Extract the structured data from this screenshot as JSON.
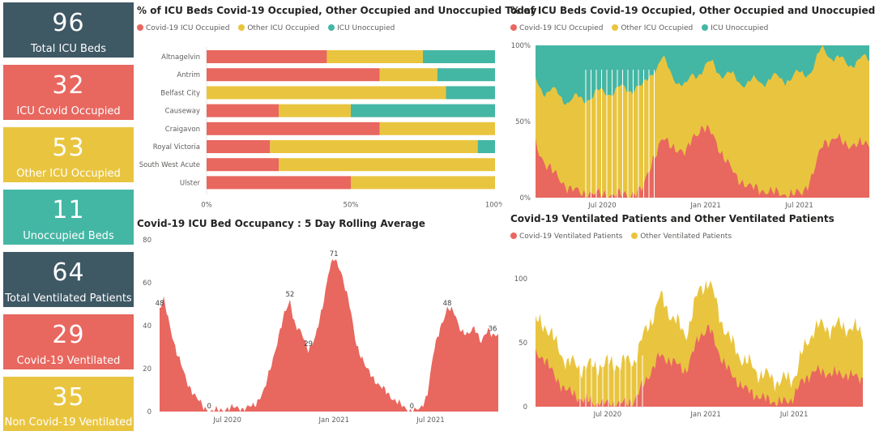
{
  "colors": {
    "covid": "#E8675F",
    "other": "#E9C53F",
    "unocc": "#44B6A4",
    "slate": "#3E5864"
  },
  "cards": [
    {
      "value": "96",
      "label": "Total ICU Beds",
      "color": "#3E5864"
    },
    {
      "value": "32",
      "label": "ICU Covid Occupied",
      "color": "#E8675F"
    },
    {
      "value": "53",
      "label": "Other ICU Occupied",
      "color": "#E9C53F"
    },
    {
      "value": "11",
      "label": "Unoccupied Beds",
      "color": "#44B6A4"
    },
    {
      "value": "64",
      "label": "Total Ventilated Patients",
      "color": "#3E5864"
    },
    {
      "value": "29",
      "label": "Covid-19 Ventilated",
      "color": "#E8675F"
    },
    {
      "value": "35",
      "label": "Non Covid-19 Ventilated",
      "color": "#E9C53F"
    }
  ],
  "today": {
    "title": "% of ICU Beds Covid-19 Occupied, Other Occupied and Unoccupied Today",
    "legend": [
      "Covid-19 ICU Occupied",
      "Other ICU Occupied",
      "ICU Unoccupied"
    ]
  },
  "history": {
    "title": "% of ICU Beds Covid-19 Occupied, Other Occupied and Unoccupied",
    "legend": [
      "Covid-19 ICU Occupied",
      "Other ICU Occupied",
      "ICU Unoccupied"
    ]
  },
  "rolling": {
    "title": "Covid-19 ICU Bed Occupancy : 5 Day Rolling Average"
  },
  "vent": {
    "title": "Covid-19 Ventilated Patients and Other Ventilated Patients",
    "legend": [
      "Covid-19 Ventilated Patients",
      "Other Ventilated Patients"
    ]
  },
  "chart_data": [
    {
      "type": "bar",
      "stacked": "100%",
      "orientation": "horizontal",
      "categories": [
        "Altnagelvin",
        "Antrim",
        "Belfast City",
        "Causeway",
        "Craigavon",
        "Royal Victoria",
        "South West Acute",
        "Ulster"
      ],
      "series": [
        {
          "name": "Covid-19 ICU Occupied",
          "values": [
            41.7,
            60,
            0,
            25,
            60,
            22,
            25,
            50
          ]
        },
        {
          "name": "Other ICU Occupied",
          "values": [
            33.3,
            20,
            83,
            25,
            40,
            72,
            75,
            50
          ]
        },
        {
          "name": "ICU Unoccupied",
          "values": [
            25,
            20,
            17,
            50,
            0,
            6,
            0,
            0
          ]
        }
      ],
      "x_ticks": [
        "0%",
        "50%",
        "100%"
      ],
      "xlim": [
        0,
        100
      ]
    },
    {
      "type": "area",
      "stacked": "100%",
      "x_ticks": [
        "Jul 2020",
        "Jan 2021",
        "Jul 2021"
      ],
      "y_ticks": [
        "0%",
        "50%",
        "100%"
      ],
      "ylim": [
        0,
        100
      ],
      "series": [
        {
          "name": "Covid-19 ICU Occupied",
          "keypoints": [
            [
              0,
              35
            ],
            [
              0.03,
              22
            ],
            [
              0.06,
              15
            ],
            [
              0.1,
              6
            ],
            [
              0.14,
              3
            ],
            [
              0.2,
              2
            ],
            [
              0.28,
              2
            ],
            [
              0.32,
              5
            ],
            [
              0.35,
              25
            ],
            [
              0.38,
              38
            ],
            [
              0.42,
              33
            ],
            [
              0.45,
              28
            ],
            [
              0.47,
              40
            ],
            [
              0.5,
              46
            ],
            [
              0.53,
              42
            ],
            [
              0.56,
              28
            ],
            [
              0.6,
              14
            ],
            [
              0.64,
              7
            ],
            [
              0.68,
              5
            ],
            [
              0.72,
              3
            ],
            [
              0.76,
              2
            ],
            [
              0.8,
              3
            ],
            [
              0.83,
              15
            ],
            [
              0.86,
              35
            ],
            [
              0.9,
              40
            ],
            [
              0.93,
              34
            ],
            [
              0.96,
              36
            ],
            [
              1,
              34
            ]
          ]
        },
        {
          "name": "Other ICU Occupied",
          "keypoints": [
            [
              0,
              42
            ],
            [
              0.05,
              52
            ],
            [
              0.1,
              58
            ],
            [
              0.2,
              67
            ],
            [
              0.3,
              70
            ],
            [
              0.4,
              48
            ],
            [
              0.5,
              38
            ],
            [
              0.6,
              64
            ],
            [
              0.7,
              74
            ],
            [
              0.8,
              78
            ],
            [
              0.9,
              52
            ],
            [
              1,
              56
            ]
          ]
        }
      ]
    },
    {
      "type": "area",
      "x_ticks": [
        "Jul 2020",
        "Jan 2021",
        "Jul 2021"
      ],
      "y_ticks": [
        0,
        20,
        40,
        60,
        80
      ],
      "ylim": [
        0,
        80
      ],
      "data_labels": [
        {
          "date": "2020-03",
          "value": 48
        },
        {
          "date": "2020-07",
          "value": 0
        },
        {
          "date": "2020-11",
          "value": 52
        },
        {
          "date": "2020-12",
          "value": 29
        },
        {
          "date": "2021-01",
          "value": 71
        },
        {
          "date": "2021-06",
          "value": 0
        },
        {
          "date": "2021-08",
          "value": 48
        },
        {
          "date": "2021-11",
          "value": 36
        }
      ],
      "series": [
        {
          "name": "Covid-19 ICU Occupied",
          "keypoints": [
            [
              0,
              48
            ],
            [
              0.012,
              52
            ],
            [
              0.03,
              40
            ],
            [
              0.05,
              28
            ],
            [
              0.08,
              14
            ],
            [
              0.11,
              6
            ],
            [
              0.13,
              2
            ],
            [
              0.15,
              0
            ],
            [
              0.19,
              1
            ],
            [
              0.23,
              2
            ],
            [
              0.25,
              1
            ],
            [
              0.28,
              3
            ],
            [
              0.31,
              10
            ],
            [
              0.34,
              28
            ],
            [
              0.37,
              46
            ],
            [
              0.385,
              52
            ],
            [
              0.4,
              40
            ],
            [
              0.42,
              36
            ],
            [
              0.44,
              29
            ],
            [
              0.46,
              34
            ],
            [
              0.48,
              48
            ],
            [
              0.5,
              66
            ],
            [
              0.515,
              71
            ],
            [
              0.535,
              66
            ],
            [
              0.56,
              50
            ],
            [
              0.58,
              32
            ],
            [
              0.61,
              20
            ],
            [
              0.65,
              12
            ],
            [
              0.69,
              6
            ],
            [
              0.72,
              2
            ],
            [
              0.745,
              0
            ],
            [
              0.77,
              1
            ],
            [
              0.79,
              8
            ],
            [
              0.81,
              28
            ],
            [
              0.83,
              40
            ],
            [
              0.85,
              48
            ],
            [
              0.87,
              46
            ],
            [
              0.89,
              38
            ],
            [
              0.91,
              35
            ],
            [
              0.93,
              40
            ],
            [
              0.95,
              32
            ],
            [
              0.97,
              38
            ],
            [
              0.985,
              36
            ],
            [
              1,
              36
            ]
          ]
        }
      ]
    },
    {
      "type": "area",
      "stacked": true,
      "x_ticks": [
        "Jul 2020",
        "Jan 2021",
        "Jul 2021"
      ],
      "y_ticks": [
        0,
        50,
        100
      ],
      "ylim": [
        0,
        110
      ],
      "series": [
        {
          "name": "Covid-19 Ventilated Patients",
          "keypoints": [
            [
              0,
              40
            ],
            [
              0.03,
              38
            ],
            [
              0.06,
              22
            ],
            [
              0.1,
              12
            ],
            [
              0.14,
              6
            ],
            [
              0.18,
              3
            ],
            [
              0.25,
              2
            ],
            [
              0.3,
              4
            ],
            [
              0.34,
              22
            ],
            [
              0.38,
              40
            ],
            [
              0.42,
              35
            ],
            [
              0.46,
              28
            ],
            [
              0.5,
              55
            ],
            [
              0.53,
              62
            ],
            [
              0.56,
              42
            ],
            [
              0.6,
              24
            ],
            [
              0.65,
              12
            ],
            [
              0.7,
              6
            ],
            [
              0.75,
              3
            ],
            [
              0.78,
              5
            ],
            [
              0.81,
              18
            ],
            [
              0.85,
              28
            ],
            [
              0.9,
              26
            ],
            [
              0.95,
              25
            ],
            [
              1,
              22
            ]
          ]
        },
        {
          "name": "Other Ventilated Patients",
          "keypoints": [
            [
              0,
              25
            ],
            [
              0.05,
              28
            ],
            [
              0.1,
              22
            ],
            [
              0.2,
              30
            ],
            [
              0.3,
              32
            ],
            [
              0.38,
              45
            ],
            [
              0.45,
              28
            ],
            [
              0.52,
              38
            ],
            [
              0.6,
              24
            ],
            [
              0.7,
              18
            ],
            [
              0.8,
              16
            ],
            [
              0.85,
              34
            ],
            [
              0.9,
              36
            ],
            [
              0.95,
              38
            ],
            [
              1,
              35
            ]
          ]
        }
      ]
    }
  ]
}
